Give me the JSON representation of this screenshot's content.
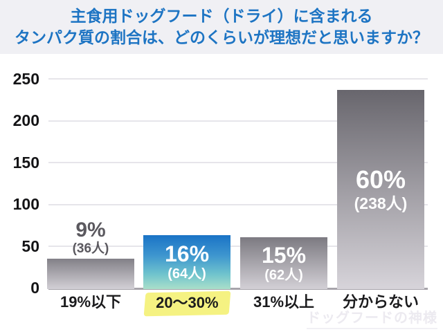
{
  "title": {
    "line1": "主食用ドッグフード（ドライ）に含まれる",
    "line2": "タンパク質の割合は、どのくらいが理想だと思いますか？"
  },
  "watermark": "ドッグフードの神様",
  "colors": {
    "title_blue": "#1d74c3",
    "title_strip_bg": "#f0f0f4",
    "highlight_yellow": "#f5f282",
    "bar_blue_top": "#1a73c6",
    "bar_blue_bottom": "#aadfca",
    "bar_gray_top": "#68666d",
    "bar_gray_bottom": "#d7d4da",
    "gridline": "#e6e5ea",
    "axis": "#a7a4ab"
  },
  "chart_data": {
    "type": "bar",
    "title": "主食用ドッグフード（ドライ）に含まれるタンパク質の割合は、どのくらいが理想だと思いますか？",
    "categories": [
      "19%以下",
      "20〜30%",
      "31%以上",
      "分からない"
    ],
    "values": [
      36,
      64,
      62,
      238
    ],
    "pct_labels": [
      "9%",
      "16%",
      "15%",
      "60%"
    ],
    "count_labels": [
      "(36人)",
      "(64人)",
      "(62人)",
      "(238人)"
    ],
    "y_ticks": [
      250,
      200,
      150,
      100,
      50,
      0
    ],
    "ylim": [
      0,
      250
    ],
    "grid": true,
    "legend": false,
    "highlighted_category_index": 1,
    "xlabel": "",
    "ylabel": ""
  }
}
